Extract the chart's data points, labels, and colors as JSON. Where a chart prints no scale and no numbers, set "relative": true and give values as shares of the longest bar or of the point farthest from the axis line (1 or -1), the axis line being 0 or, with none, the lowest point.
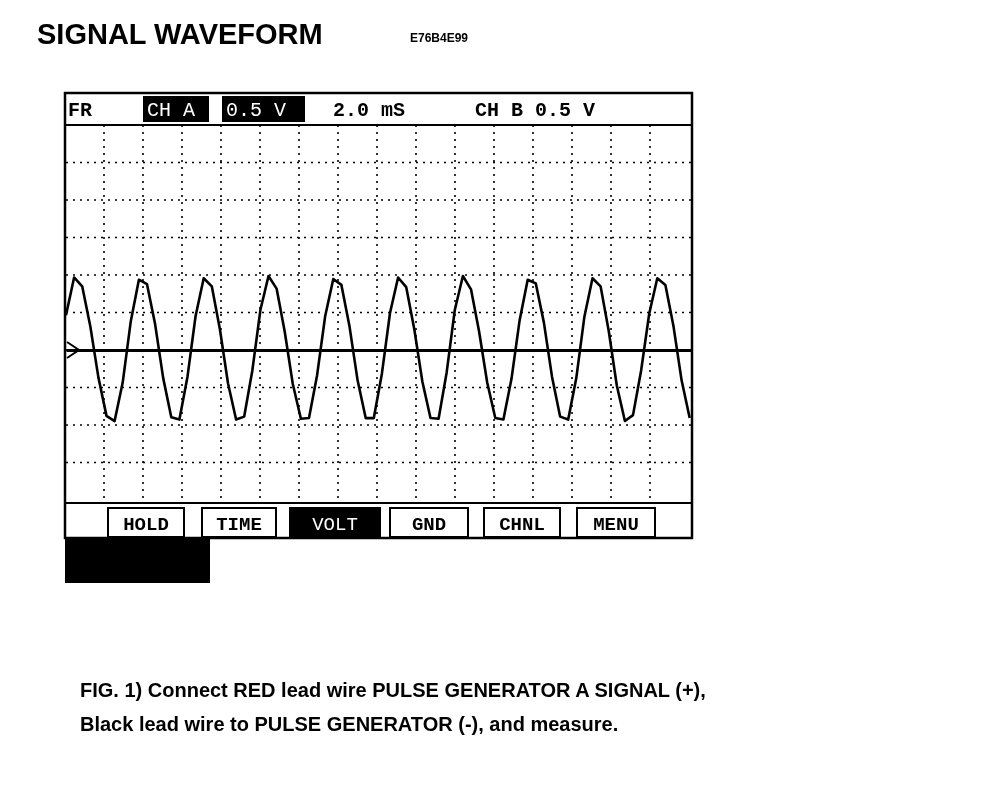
{
  "chart_data": {
    "type": "line",
    "title": "SIGNAL WAVEFORM",
    "relative": true,
    "grid": true,
    "marker": "none",
    "line_style": "solid",
    "categories": [
      null,
      null,
      null,
      null,
      null,
      null,
      null,
      null,
      null,
      null,
      null,
      null,
      null,
      null,
      null,
      null,
      null,
      null,
      null,
      null,
      null,
      null,
      null,
      null,
      null,
      null,
      null,
      null,
      null,
      null,
      null,
      null,
      null,
      null,
      null,
      null,
      null,
      null,
      null,
      null,
      null,
      null,
      null,
      null,
      null,
      null,
      null,
      null,
      null,
      null,
      null,
      null,
      null,
      null,
      null,
      null,
      null,
      null,
      null,
      null,
      null,
      null,
      null,
      null,
      null,
      null,
      null,
      null,
      null,
      null,
      null,
      null,
      null,
      null,
      null,
      null,
      null,
      null
    ],
    "series": [
      {
        "color": "#000000",
        "values": [
          0.47,
          0.98,
          0.86,
          0.32,
          -0.37,
          -0.89,
          -0.96,
          -0.44,
          0.39,
          0.95,
          0.89,
          0.35,
          -0.38,
          -0.91,
          -0.94,
          -0.36,
          0.46,
          0.97,
          0.86,
          0.28,
          -0.45,
          -0.94,
          -0.9,
          -0.28,
          0.54,
          1,
          0.83,
          0.25,
          -0.46,
          -0.93,
          -0.92,
          -0.34,
          0.46,
          0.96,
          0.88,
          0.32,
          -0.41,
          -0.92,
          -0.92,
          -0.32,
          0.5,
          0.98,
          0.85,
          0.28,
          -0.43,
          -0.92,
          -0.93,
          -0.3,
          0.54,
          1,
          0.82,
          0.25,
          -0.44,
          -0.92,
          -0.94,
          -0.39,
          0.4,
          0.95,
          0.9,
          0.37,
          -0.36,
          -0.9,
          -0.94,
          -0.38,
          0.45,
          0.97,
          0.86,
          0.26,
          -0.48,
          -0.96,
          -0.88,
          -0.28,
          0.49,
          0.97,
          0.88,
          0.32,
          -0.41,
          -0.92
        ]
      }
    ],
    "annotations": [
      "E76B4E99",
      "FR",
      "CH A",
      "0.5 V",
      "2.0 mS",
      "CH B 0.5 V",
      "HOLD",
      "TIME",
      "VOLT",
      "GND",
      "CHNL",
      "MENU",
      "FIG. 1) Connect RED lead wire PULSE GENERATOR A SIGNAL (+),",
      "Black lead wire to PULSE GENERATOR (-), and measure."
    ]
  }
}
